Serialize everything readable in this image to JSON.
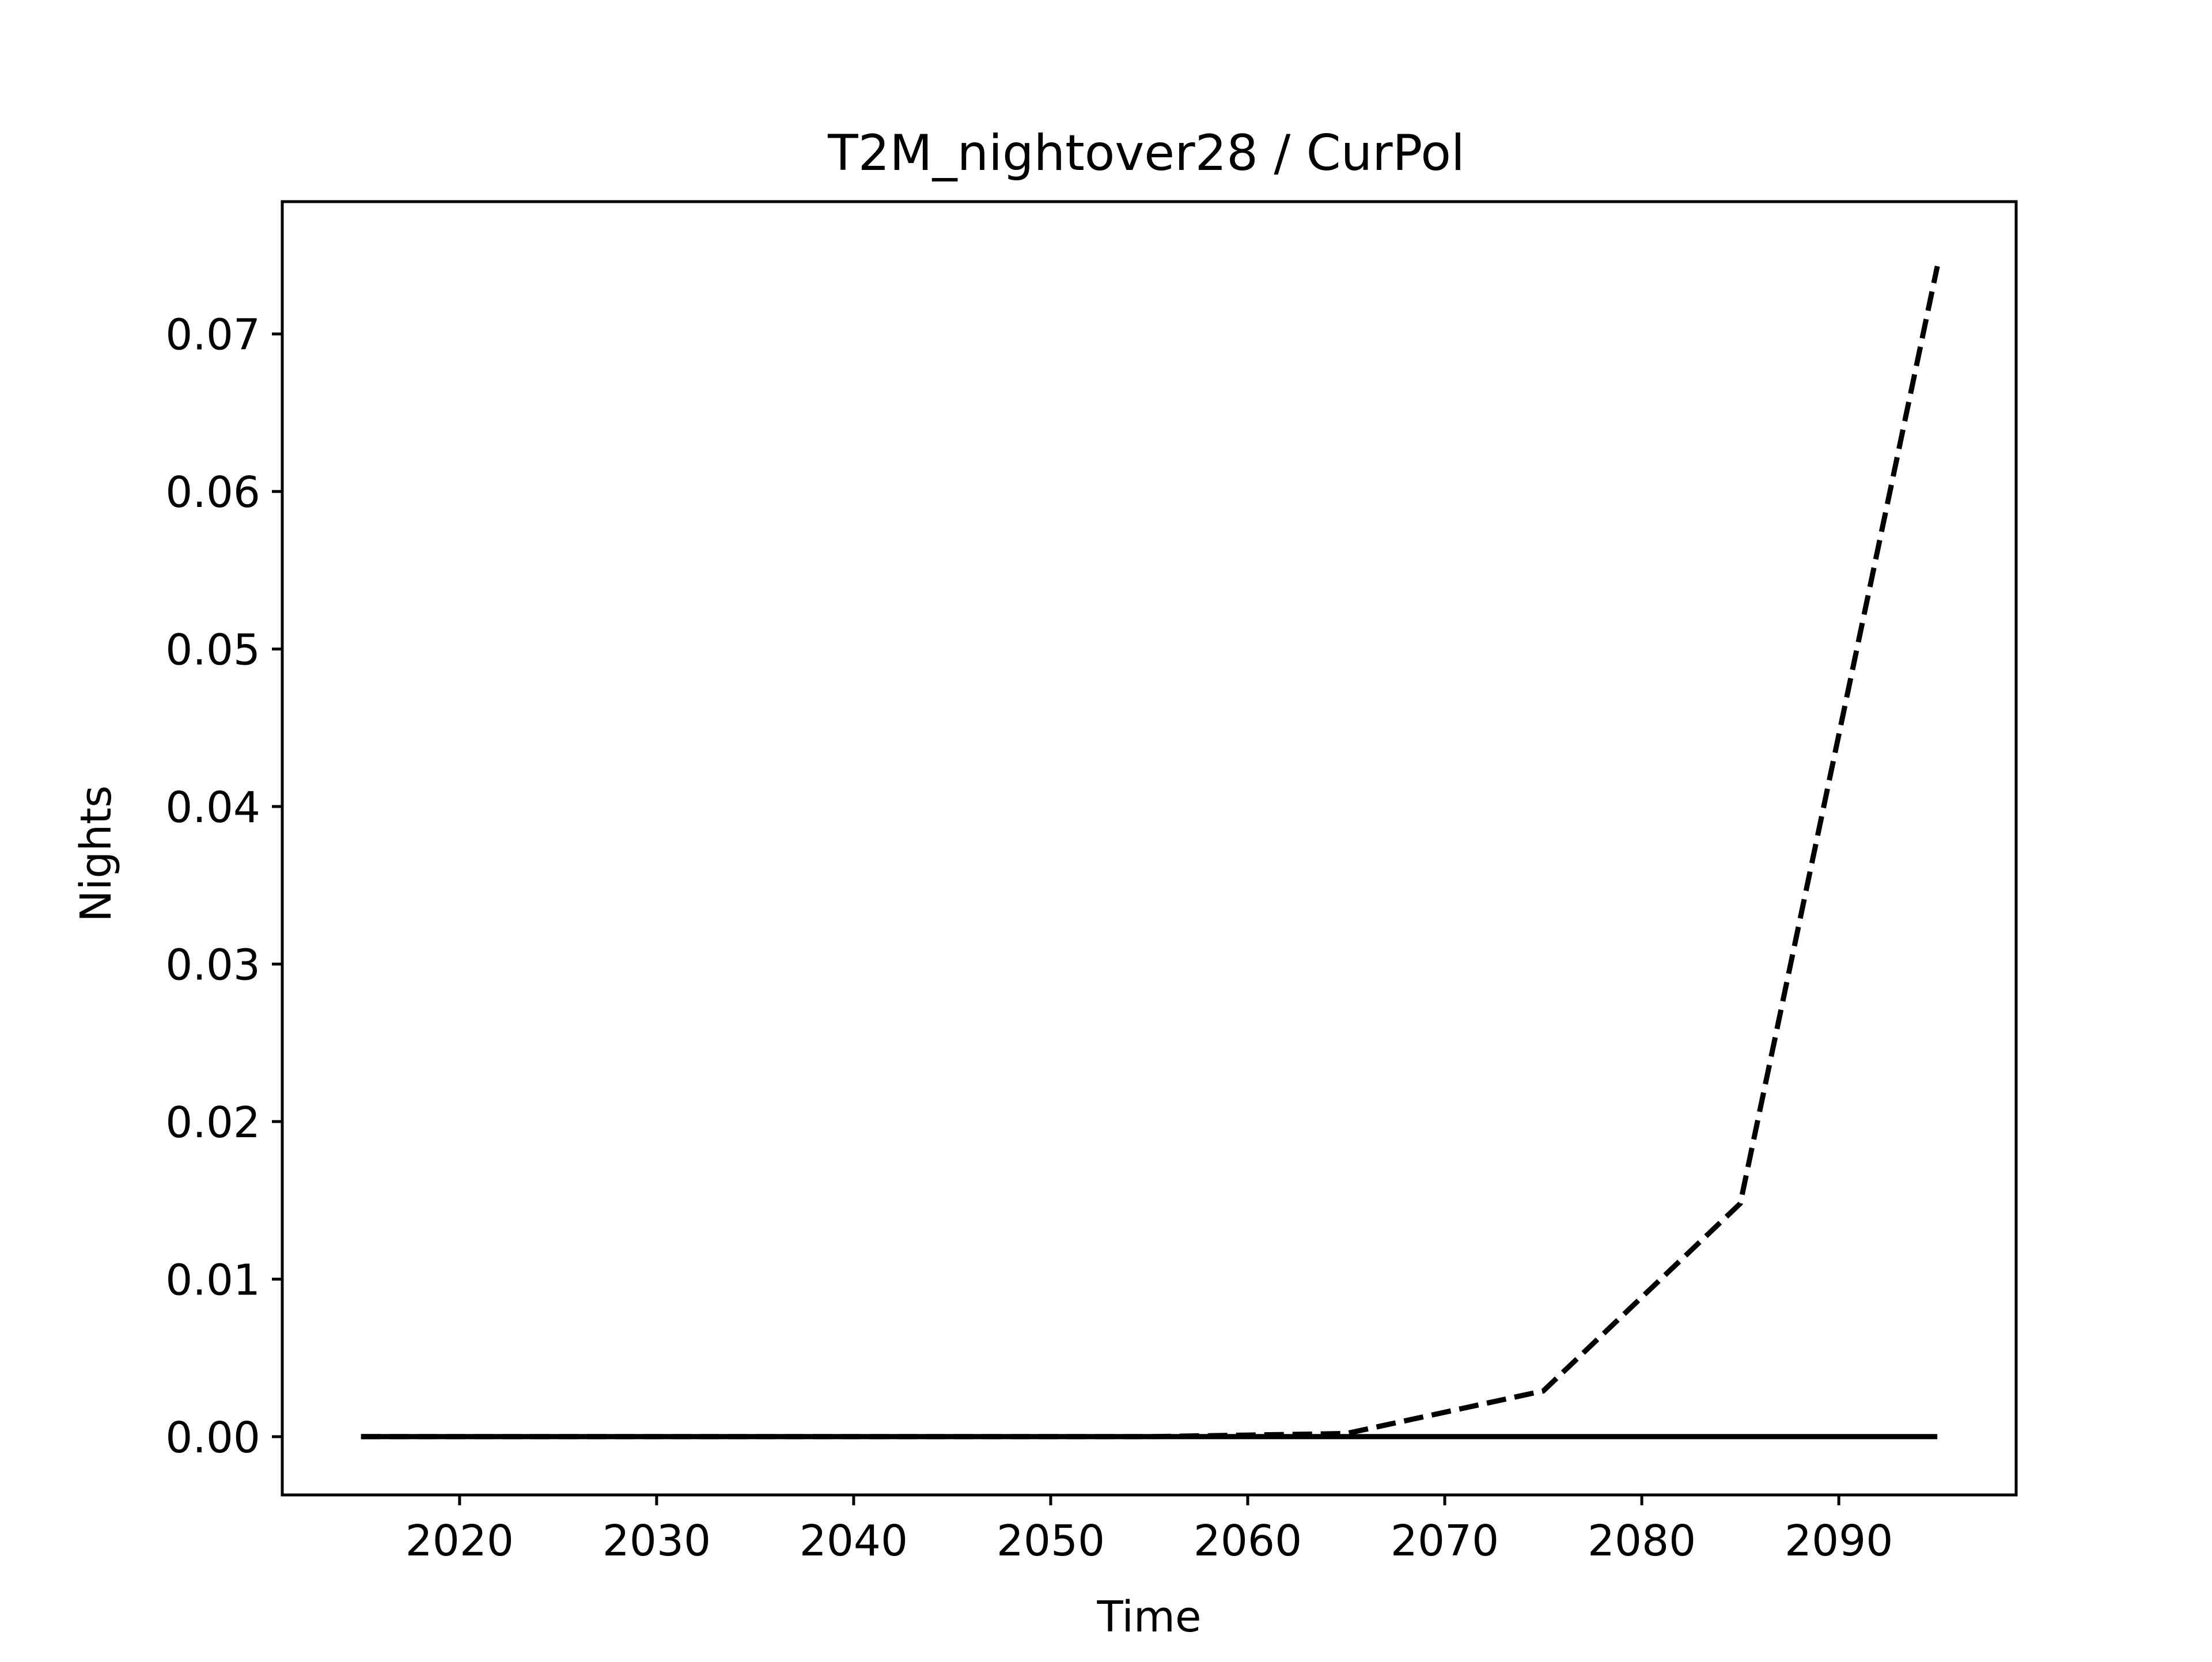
{
  "chart_data": {
    "type": "line",
    "title": "T2M_nightover28 / CurPol",
    "xlabel": "Time",
    "ylabel": "Nights",
    "xlim": [
      2011,
      2099
    ],
    "ylim": [
      -0.0037,
      0.0784
    ],
    "grid": false,
    "x_ticks": [
      2020,
      2030,
      2040,
      2050,
      2060,
      2070,
      2080,
      2090
    ],
    "x_tick_labels": [
      "2020",
      "2030",
      "2040",
      "2050",
      "2060",
      "2070",
      "2080",
      "2090"
    ],
    "y_ticks": [
      0.0,
      0.01,
      0.02,
      0.03,
      0.04,
      0.05,
      0.06,
      0.07
    ],
    "y_tick_labels": [
      "0.00",
      "0.01",
      "0.02",
      "0.03",
      "0.04",
      "0.05",
      "0.06",
      "0.07"
    ],
    "series": [
      {
        "style": "dashed",
        "color": "#000000",
        "x": [
          2015,
          2025,
          2035,
          2045,
          2055,
          2065,
          2075,
          2085,
          2095
        ],
        "y": [
          0.0,
          0.0,
          0.0,
          0.0,
          0.0,
          0.0002,
          0.0029,
          0.0148,
          0.0743
        ]
      },
      {
        "style": "solid",
        "color": "#000000",
        "x": [
          2015,
          2025,
          2035,
          2045,
          2055,
          2065,
          2075,
          2085,
          2095
        ],
        "y": [
          0.0,
          0.0,
          0.0,
          0.0,
          0.0,
          0.0,
          0.0,
          0.0,
          0.0
        ]
      }
    ]
  }
}
